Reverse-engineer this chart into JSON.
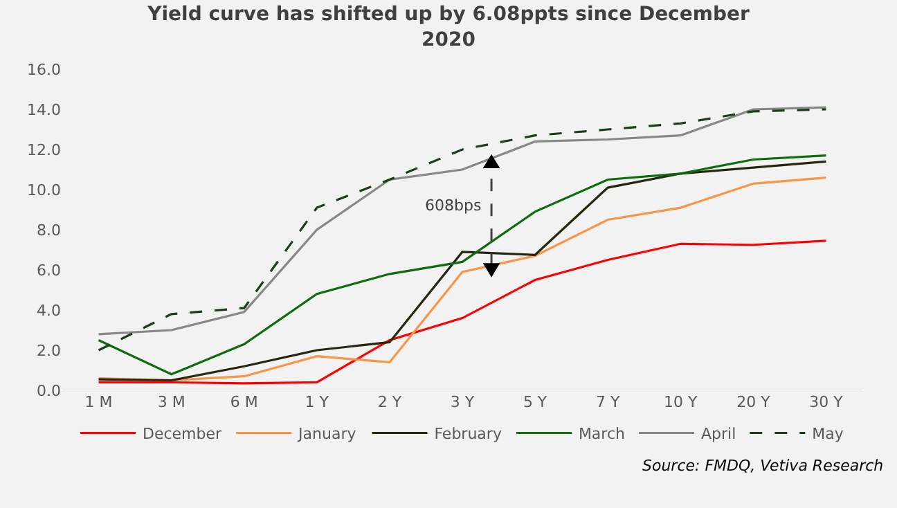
{
  "chart_data": {
    "type": "line",
    "title": "Yield curve has shifted up by 6.08ppts since December 2020",
    "categories": [
      "1 M",
      "3 M",
      "6 M",
      "1 Y",
      "2 Y",
      "3 Y",
      "5 Y",
      "7 Y",
      "10 Y",
      "20 Y",
      "30 Y"
    ],
    "series": [
      {
        "name": "December",
        "color": "#ff0000",
        "values": [
          0.4,
          0.4,
          0.35,
          0.4,
          2.5,
          3.6,
          5.5,
          6.5,
          7.3,
          7.25,
          7.45
        ]
      },
      {
        "name": "January",
        "color": "#f79646",
        "values": [
          0.6,
          0.5,
          0.7,
          1.7,
          1.4,
          5.9,
          6.7,
          8.5,
          9.1,
          10.3,
          10.6
        ]
      },
      {
        "name": "February",
        "color": "#262611",
        "values": [
          0.55,
          0.5,
          1.2,
          2.0,
          2.4,
          6.9,
          6.75,
          10.1,
          10.8,
          11.1,
          11.4
        ]
      },
      {
        "name": "March",
        "color": "#0e6b0e",
        "values": [
          2.5,
          0.8,
          2.3,
          4.8,
          5.8,
          6.4,
          8.9,
          10.5,
          10.8,
          11.5,
          11.7
        ]
      },
      {
        "name": "April",
        "color": "#878787",
        "values": [
          2.8,
          3.0,
          3.9,
          8.0,
          10.5,
          11.0,
          12.4,
          12.5,
          12.7,
          14.0,
          14.1
        ]
      },
      {
        "name": "May",
        "color": "#1d3d1d",
        "line_style": "dashed",
        "values": [
          2.0,
          3.8,
          4.1,
          9.1,
          10.5,
          12.0,
          12.7,
          13.0,
          13.3,
          13.9,
          14.0
        ]
      }
    ],
    "ylim": [
      0,
      16
    ],
    "yticks": [
      {
        "value": 0,
        "label": "0.0"
      },
      {
        "value": 2,
        "label": "2.0"
      },
      {
        "value": 4,
        "label": "4.0"
      },
      {
        "value": 6,
        "label": "6.0"
      },
      {
        "value": 8,
        "label": "8.0"
      },
      {
        "value": 10,
        "label": "10.0"
      },
      {
        "value": 12,
        "label": "12.0"
      },
      {
        "value": 14,
        "label": "14.0"
      },
      {
        "value": 16,
        "label": "16.0"
      }
    ],
    "grid": false,
    "legend": "bottom",
    "marker": "none",
    "annotations": [
      "608bps",
      "Source: FMDQ, Vetiva Research"
    ]
  }
}
